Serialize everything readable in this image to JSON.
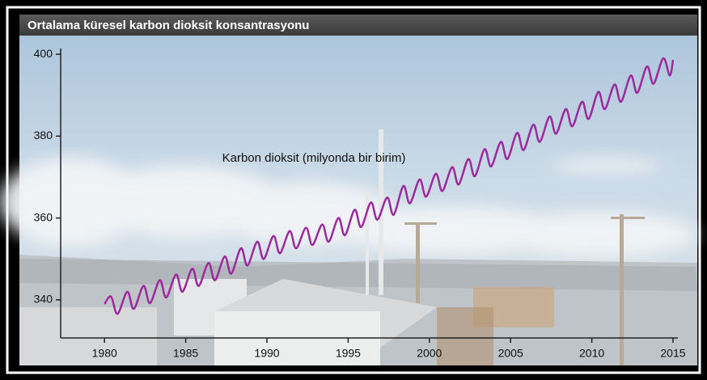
{
  "chart_data": {
    "type": "line",
    "title": "Ortalama küresel karbon dioksit konsantrasyonu",
    "x": [
      1980.0,
      1980.4,
      1980.8,
      1981.4,
      1981.8,
      1982.4,
      1982.8,
      1983.4,
      1983.8,
      1984.4,
      1984.8,
      1985.4,
      1985.8,
      1986.4,
      1986.8,
      1987.4,
      1987.8,
      1988.4,
      1988.8,
      1989.4,
      1989.8,
      1990.4,
      1990.8,
      1991.4,
      1991.8,
      1992.4,
      1992.8,
      1993.4,
      1993.8,
      1994.4,
      1994.8,
      1995.4,
      1995.8,
      1996.4,
      1996.8,
      1997.4,
      1997.8,
      1998.4,
      1998.8,
      1999.4,
      1999.8,
      2000.4,
      2000.8,
      2001.4,
      2001.8,
      2002.4,
      2002.8,
      2003.4,
      2003.8,
      2004.4,
      2004.8,
      2005.4,
      2005.8,
      2006.4,
      2006.8,
      2007.4,
      2007.8,
      2008.4,
      2008.8,
      2009.4,
      2009.8,
      2010.4,
      2010.8,
      2011.4,
      2011.8,
      2012.4,
      2012.8,
      2013.4,
      2013.8,
      2014.4,
      2014.8,
      2015.0
    ],
    "series": [
      {
        "name": "Karbon dioksit (milyonda bir birim)",
        "color": "#9c2a9c",
        "values": [
          339.0,
          340.8,
          336.6,
          342.0,
          337.8,
          343.4,
          339.2,
          344.8,
          340.6,
          346.2,
          342.0,
          347.6,
          343.4,
          349.0,
          344.8,
          350.6,
          346.4,
          352.6,
          348.4,
          354.2,
          350.0,
          355.6,
          351.4,
          356.8,
          352.6,
          357.6,
          353.4,
          358.4,
          354.2,
          360.0,
          355.8,
          362.0,
          357.8,
          363.8,
          359.6,
          365.0,
          360.8,
          367.8,
          363.6,
          369.4,
          365.2,
          370.8,
          366.6,
          372.4,
          368.2,
          374.4,
          370.2,
          376.8,
          372.6,
          378.6,
          374.4,
          380.8,
          376.6,
          382.8,
          378.6,
          384.8,
          380.6,
          386.6,
          382.4,
          388.4,
          384.2,
          390.8,
          386.6,
          392.6,
          388.4,
          394.8,
          390.6,
          397.0,
          392.8,
          399.0,
          394.8,
          398.6
        ]
      }
    ],
    "xlim": [
      1977.3,
      2015.3
    ],
    "ylim": [
      330.7,
      401.4
    ],
    "xticks": [
      1980,
      1985,
      1990,
      1995,
      2000,
      2005,
      2010,
      2015
    ],
    "yticks": [
      340,
      360,
      380,
      400
    ]
  }
}
